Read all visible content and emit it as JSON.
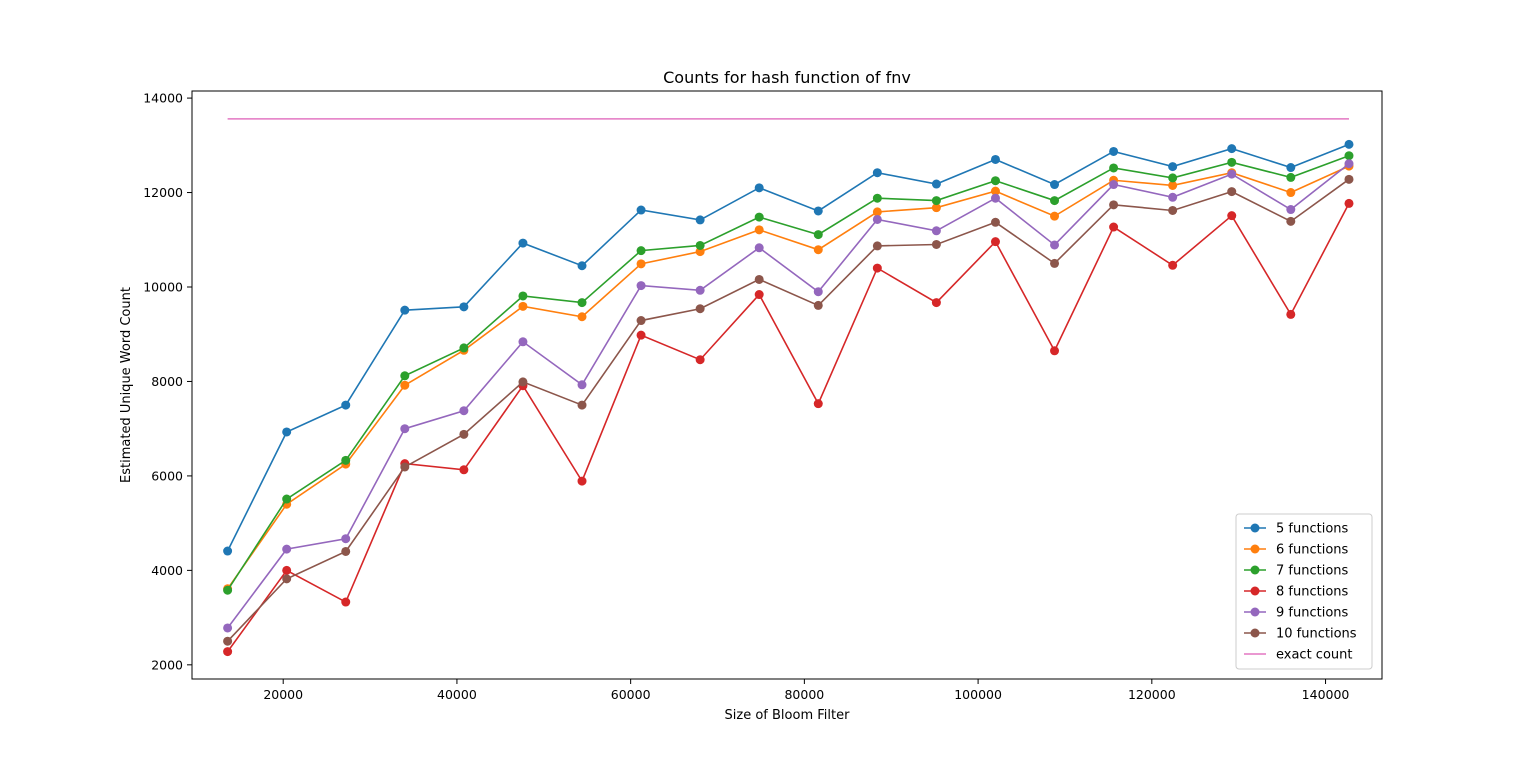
{
  "chart_data": {
    "type": "line",
    "title": "Counts for hash function of fnv",
    "xlabel": "Size of Bloom Filter",
    "ylabel": "Estimated Unique Word Count",
    "xlim": [
      9500,
      146500
    ],
    "ylim": [
      1700,
      14150
    ],
    "xticks": [
      20000,
      40000,
      60000,
      80000,
      100000,
      120000,
      140000
    ],
    "yticks": [
      2000,
      4000,
      6000,
      8000,
      10000,
      12000,
      14000
    ],
    "grid": false,
    "legend_position": "lower-right",
    "x": [
      13600,
      20400,
      27200,
      34000,
      40800,
      47600,
      54400,
      61200,
      68000,
      74800,
      81600,
      88400,
      95200,
      102000,
      108800,
      115600,
      122400,
      129200,
      136000,
      142700
    ],
    "series": [
      {
        "name": "5 functions",
        "color": "#1f77b4",
        "markers": true,
        "values": [
          4410,
          6930,
          7500,
          9510,
          9580,
          10930,
          10450,
          11630,
          11420,
          12100,
          11610,
          12420,
          12180,
          12700,
          12170,
          12870,
          12550,
          12930,
          12530,
          13020
        ]
      },
      {
        "name": "6 functions",
        "color": "#ff7f0e",
        "markers": true,
        "values": [
          3610,
          5400,
          6250,
          7920,
          8660,
          9590,
          9370,
          10490,
          10750,
          11210,
          10790,
          11590,
          11680,
          12030,
          11500,
          12260,
          12150,
          12420,
          12000,
          12560
        ]
      },
      {
        "name": "7 functions",
        "color": "#2ca02c",
        "markers": true,
        "values": [
          3580,
          5510,
          6330,
          8120,
          8710,
          9810,
          9670,
          10770,
          10880,
          11480,
          11110,
          11880,
          11830,
          12250,
          11830,
          12520,
          12310,
          12640,
          12320,
          12780
        ]
      },
      {
        "name": "8 functions",
        "color": "#d62728",
        "markers": true,
        "values": [
          2280,
          4000,
          3330,
          6260,
          6130,
          7910,
          5890,
          8980,
          8460,
          9840,
          7530,
          10400,
          9670,
          10960,
          8650,
          11270,
          10460,
          11510,
          9420,
          11770
        ]
      },
      {
        "name": "9 functions",
        "color": "#9467bd",
        "markers": true,
        "values": [
          2780,
          4450,
          4670,
          7000,
          7380,
          8840,
          7930,
          10030,
          9930,
          10830,
          9900,
          11430,
          11190,
          11880,
          10890,
          12170,
          11900,
          12390,
          11640,
          12610
        ]
      },
      {
        "name": "10 functions",
        "color": "#8c564b",
        "markers": true,
        "values": [
          2500,
          3820,
          4400,
          6190,
          6880,
          7990,
          7500,
          9290,
          9540,
          10160,
          9610,
          10870,
          10900,
          11370,
          10500,
          11740,
          11620,
          12020,
          11390,
          12280
        ]
      },
      {
        "name": "exact count",
        "color": "#e377c2",
        "markers": false,
        "values": [
          13560,
          13560,
          13560,
          13560,
          13560,
          13560,
          13560,
          13560,
          13560,
          13560,
          13560,
          13560,
          13560,
          13560,
          13560,
          13560,
          13560,
          13560,
          13560,
          13560
        ]
      }
    ]
  }
}
